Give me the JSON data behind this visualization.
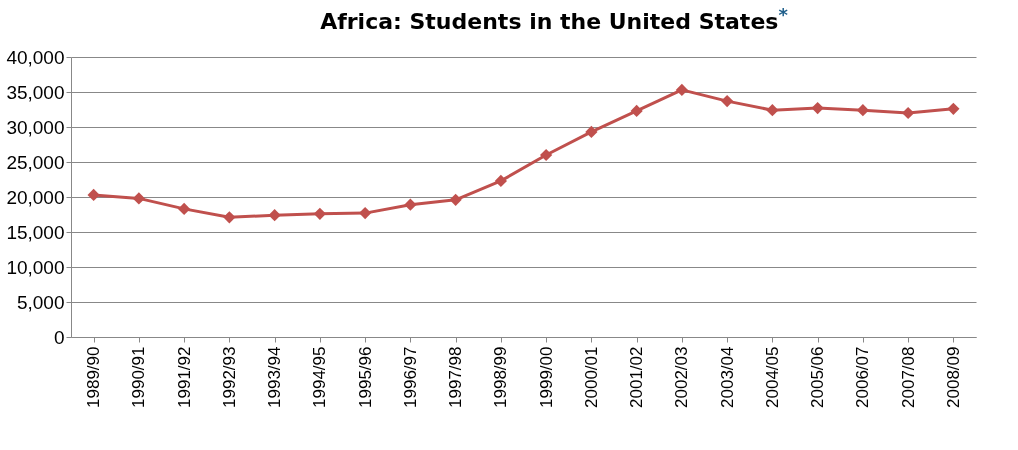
{
  "chart_data": {
    "type": "line",
    "title": "Africa: Students in the United States$^{*}$",
    "categories": [
      "1989/90",
      "1990/91",
      "1991/92",
      "1992/93",
      "1993/94",
      "1994/95",
      "1995/96",
      "1996/97",
      "1997/98",
      "1998/99",
      "1999/00",
      "2000/01",
      "2001/02",
      "2002/03",
      "2003/04",
      "2004/05",
      "2005/06",
      "2006/07",
      "2007/08",
      "2008/09"
    ],
    "series": [
      {
        "color": "#c0504d",
        "values": [
          20300,
          19800,
          18300,
          17100,
          17400,
          17600,
          17700,
          18900,
          19600,
          22300,
          26000,
          29300,
          32300,
          35300,
          33700,
          32400,
          32700,
          32400,
          32000,
          32600
        ]
      }
    ],
    "ylim": [
      0,
      40000
    ],
    "yticks": [
      {
        "value": 0,
        "label": "0"
      },
      {
        "value": 5000,
        "label": "5,000"
      },
      {
        "value": 10000,
        "label": "10,000"
      },
      {
        "value": 15000,
        "label": "15,000"
      },
      {
        "value": 20000,
        "label": "20,000"
      },
      {
        "value": 25000,
        "label": "25,000"
      },
      {
        "value": 30000,
        "label": "30,000"
      },
      {
        "value": 35000,
        "label": "35,000"
      },
      {
        "value": 40000,
        "label": "40,000"
      }
    ],
    "grid": "y",
    "marker": "diamond",
    "line_style": "solid"
  }
}
